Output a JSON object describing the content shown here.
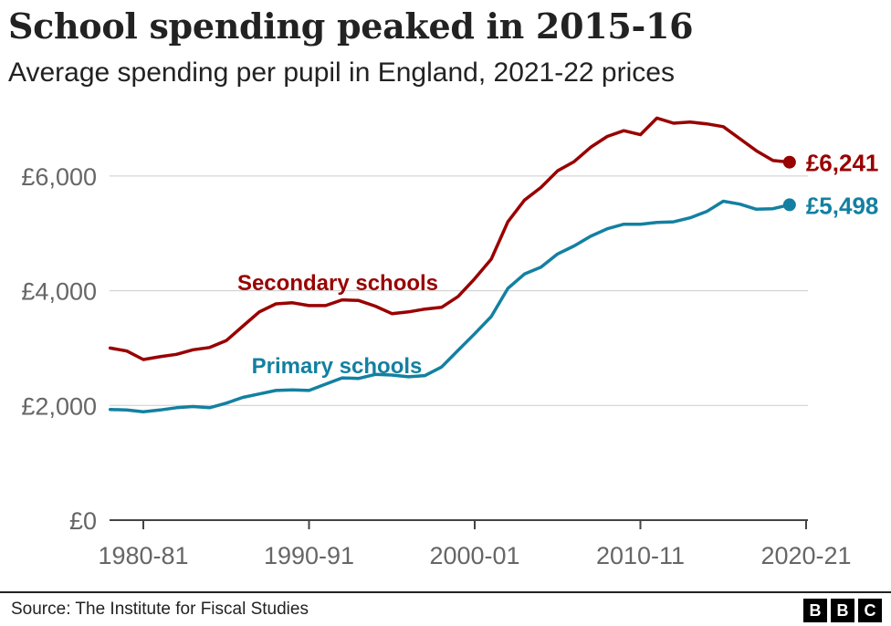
{
  "header": {
    "title": "School spending peaked in 2015-16",
    "subtitle": "Average spending per pupil in England, 2021-22 prices"
  },
  "footer": {
    "source": "Source: The Institute for Fiscal Studies",
    "logo_letters": [
      "B",
      "B",
      "C"
    ]
  },
  "chart_data": {
    "type": "line",
    "title": "School spending peaked in 2015-16",
    "subtitle": "Average spending per pupil in England, 2021-22 prices",
    "xlabel": "",
    "ylabel": "",
    "ylim": [
      0,
      7000
    ],
    "xlim": [
      1978,
      2020
    ],
    "y_ticks": [
      {
        "value": 0,
        "label": "£0"
      },
      {
        "value": 2000,
        "label": "£2,000"
      },
      {
        "value": 4000,
        "label": "£4,000"
      },
      {
        "value": 6000,
        "label": "£6,000"
      }
    ],
    "x_ticks": [
      {
        "value": 1980,
        "label": "1980-81"
      },
      {
        "value": 1990,
        "label": "1990-91"
      },
      {
        "value": 2000,
        "label": "2000-01"
      },
      {
        "value": 2010,
        "label": "2010-11"
      },
      {
        "value": 2020,
        "label": "2020-21"
      }
    ],
    "grid": true,
    "legend": "direct labels on lines",
    "x": [
      1978,
      1979,
      1980,
      1981,
      1982,
      1983,
      1984,
      1985,
      1986,
      1987,
      1988,
      1989,
      1990,
      1991,
      1992,
      1993,
      1994,
      1995,
      1996,
      1997,
      1998,
      1999,
      2000,
      2001,
      2002,
      2003,
      2004,
      2005,
      2006,
      2007,
      2008,
      2009,
      2010,
      2011,
      2012,
      2013,
      2014,
      2015,
      2016,
      2017,
      2018,
      2019
    ],
    "series": [
      {
        "name": "Secondary schools",
        "color": "#990000",
        "end_label": "£6,241",
        "values": [
          3000,
          2950,
          2800,
          2850,
          2890,
          2970,
          3010,
          3130,
          3380,
          3630,
          3770,
          3790,
          3740,
          3740,
          3840,
          3830,
          3730,
          3600,
          3630,
          3680,
          3710,
          3900,
          4210,
          4550,
          5200,
          5580,
          5800,
          6090,
          6250,
          6500,
          6690,
          6790,
          6720,
          7010,
          6920,
          6940,
          6910,
          6860,
          6650,
          6440,
          6270,
          6241
        ]
      },
      {
        "name": "Primary schools",
        "color": "#1380A1",
        "end_label": "£5,498",
        "values": [
          1930,
          1920,
          1890,
          1920,
          1960,
          1980,
          1960,
          2040,
          2140,
          2200,
          2260,
          2270,
          2260,
          2370,
          2480,
          2470,
          2540,
          2530,
          2500,
          2520,
          2670,
          2960,
          3250,
          3550,
          4040,
          4290,
          4410,
          4640,
          4780,
          4950,
          5080,
          5160,
          5160,
          5190,
          5200,
          5270,
          5380,
          5560,
          5510,
          5420,
          5430,
          5498
        ]
      }
    ]
  }
}
